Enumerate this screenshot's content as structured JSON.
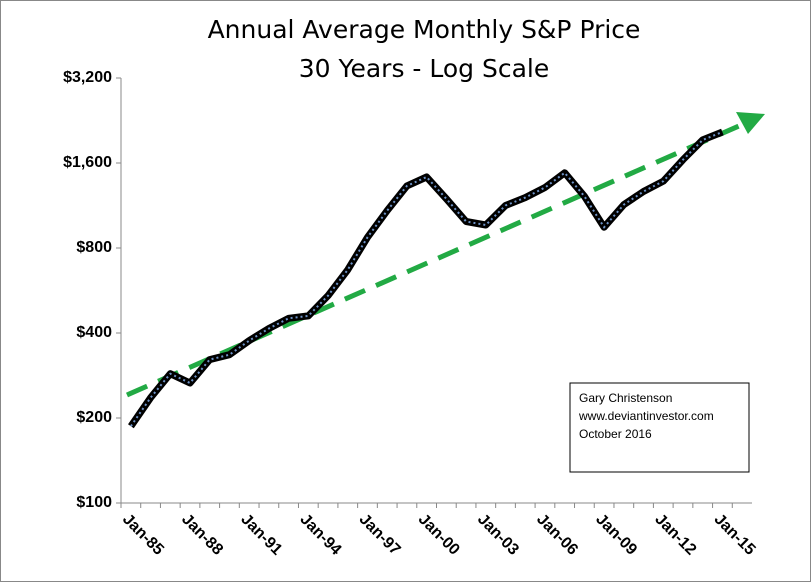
{
  "chart_data": {
    "type": "line",
    "title": "Annual Average Monthly S&P Price",
    "subtitle": "30 Years - Log Scale",
    "categories": [
      "Jan-85",
      null,
      null,
      "Jan-88",
      null,
      null,
      "Jan-91",
      null,
      null,
      "Jan-94",
      null,
      null,
      "Jan-97",
      null,
      null,
      "Jan-00",
      null,
      null,
      "Jan-03",
      null,
      null,
      "Jan-06",
      null,
      null,
      "Jan-09",
      null,
      null,
      "Jan-12",
      null,
      null,
      "Jan-15",
      null
    ],
    "series": [
      {
        "color": "#000000",
        "values": [
          187,
          236,
          287,
          266,
          322,
          335,
          376,
          415,
          451,
          460,
          542,
          670,
          873,
          1085,
          1327,
          1427,
          1194,
          993,
          965,
          1131,
          1207,
          1310,
          1477,
          1220,
          948,
          1139,
          1268,
          1379,
          1643,
          1931,
          2061,
          null
        ]
      }
    ],
    "log_scale": true,
    "ylim": [
      100,
      3200
    ],
    "yticks": [
      {
        "value": 100,
        "label": "$100"
      },
      {
        "value": 200,
        "label": "$200"
      },
      {
        "value": 400,
        "label": "$400"
      },
      {
        "value": 800,
        "label": "$800"
      },
      {
        "value": 1600,
        "label": "$1,600"
      },
      {
        "value": 3200,
        "label": "$3,200"
      }
    ],
    "annotation": [
      "Gary Christenson",
      "www.deviantinvestor.com",
      "October 2016"
    ]
  }
}
